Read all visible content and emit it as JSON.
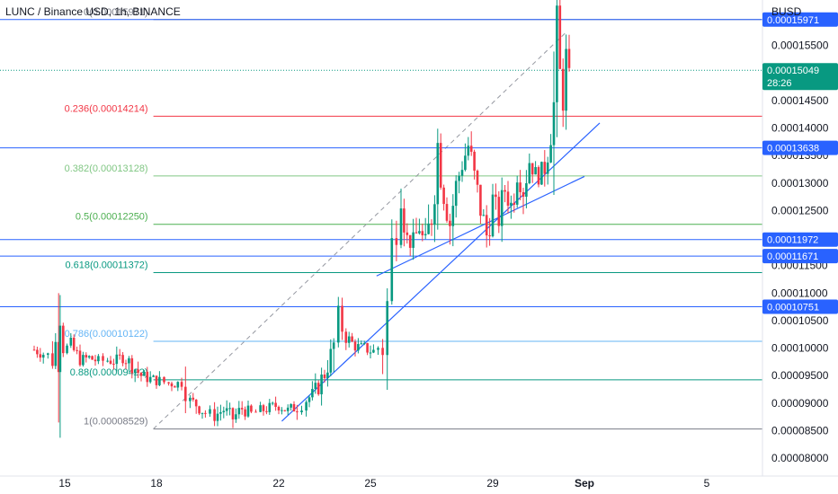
{
  "chart_data": {
    "type": "candlestick",
    "title": "LUNC / Binance USD, 1h, BINANCE",
    "currency": "BUSD",
    "y_ticks": [
      "0.00016000",
      "0.00015500",
      "0.00015000",
      "0.00014500",
      "0.00014000",
      "0.00013500",
      "0.00013000",
      "0.00012500",
      "0.00012000",
      "0.00011500",
      "0.00011000",
      "0.00010500",
      "0.00010000",
      "0.00009500",
      "0.00009000",
      "0.00008500",
      "0.00008000"
    ],
    "x_ticks": [
      {
        "label": "15",
        "day": 15
      },
      {
        "label": "18",
        "day": 18
      },
      {
        "label": "22",
        "day": 22
      },
      {
        "label": "25",
        "day": 25
      },
      {
        "label": "29",
        "day": 29
      },
      {
        "label": "Sep",
        "day": 32
      },
      {
        "label": "5",
        "day": 36
      }
    ],
    "ylim": [
      7.78e-05,
      0.0001627
    ],
    "fib_levels": [
      {
        "label": "0(0.00015971)",
        "value": 0.00015971,
        "color": "#787b86"
      },
      {
        "label": "0.236(0.00014214)",
        "value": 0.00014214,
        "color": "#f23645"
      },
      {
        "label": "0.382(0.00013128)",
        "value": 0.00013128,
        "color": "#81c784"
      },
      {
        "label": "0.5(0.00012250)",
        "value": 0.0001225,
        "color": "#4caf50"
      },
      {
        "label": "0.618(0.00011372)",
        "value": 0.00011372,
        "color": "#089981"
      },
      {
        "label": "0.786(0.00010122)",
        "value": 0.00010122,
        "color": "#64b5f6"
      },
      {
        "label": "0.88(0.00009422)",
        "value": 9.422e-05,
        "color": "#089981"
      },
      {
        "label": "1(0.00008529)",
        "value": 8.529e-05,
        "color": "#787b86"
      }
    ],
    "horizontal_lines": [
      {
        "label": "0.00015971",
        "value": 0.00015971
      },
      {
        "label": "0.00013638",
        "value": 0.00013638
      },
      {
        "label": "0.00011972",
        "value": 0.00011972
      },
      {
        "label": "0.00011671",
        "value": 0.00011671
      },
      {
        "label": "0.00010751",
        "value": 0.00010751
      }
    ],
    "current_price": {
      "label": "0.00015049",
      "value": 0.00015049,
      "countdown": "28:26",
      "color": "#089981"
    },
    "trend_lines": [
      {
        "style": "dashed",
        "from": {
          "day": 17.9,
          "value": 8.53e-05
        },
        "to": {
          "day": 31.4,
          "value": 0.0001574
        }
      },
      {
        "style": "solid",
        "from": {
          "day": 22.1,
          "value": 8.67e-05
        },
        "to": {
          "day": 32.5,
          "value": 0.0001409
        }
      },
      {
        "style": "solid",
        "from": {
          "day": 25.2,
          "value": 0.0001131
        },
        "to": {
          "day": 32.0,
          "value": 0.0001312
        }
      }
    ],
    "candles_close": [
      {
        "day": 14.0,
        "value": 9.97e-05
      },
      {
        "day": 14.3,
        "value": 9.9e-05
      },
      {
        "day": 14.6,
        "value": 9.83e-05
      },
      {
        "day": 14.8,
        "value": 0.0001032
      },
      {
        "day": 14.85,
        "value": 0.0001125
      },
      {
        "day": 14.95,
        "value": 9.98e-05
      },
      {
        "day": 15.2,
        "value": 0.0001003
      },
      {
        "day": 15.5,
        "value": 9.78e-05
      },
      {
        "day": 15.8,
        "value": 9.82e-05
      },
      {
        "day": 16.1,
        "value": 9.76e-05
      },
      {
        "day": 16.4,
        "value": 9.78e-05
      },
      {
        "day": 16.7,
        "value": 9.75e-05
      },
      {
        "day": 16.9,
        "value": 9.86e-05
      },
      {
        "day": 17.2,
        "value": 9.69e-05
      },
      {
        "day": 17.5,
        "value": 9.5e-05
      },
      {
        "day": 17.8,
        "value": 9.44e-05
      },
      {
        "day": 18.1,
        "value": 9.4e-05
      },
      {
        "day": 18.4,
        "value": 9.36e-05
      },
      {
        "day": 18.7,
        "value": 9.35e-05
      },
      {
        "day": 18.95,
        "value": 9.46e-05
      },
      {
        "day": 19.1,
        "value": 9.04e-05
      },
      {
        "day": 19.3,
        "value": 8.98e-05
      },
      {
        "day": 19.6,
        "value": 8.82e-05
      },
      {
        "day": 19.9,
        "value": 8.77e-05
      },
      {
        "day": 20.2,
        "value": 8.88e-05
      },
      {
        "day": 20.5,
        "value": 8.72e-05
      },
      {
        "day": 20.8,
        "value": 8.9e-05
      },
      {
        "day": 21.1,
        "value": 8.8e-05
      },
      {
        "day": 21.4,
        "value": 8.86e-05
      },
      {
        "day": 21.7,
        "value": 8.91e-05
      },
      {
        "day": 22.0,
        "value": 8.97e-05
      },
      {
        "day": 22.3,
        "value": 8.86e-05
      },
      {
        "day": 22.6,
        "value": 8.94e-05
      },
      {
        "day": 22.9,
        "value": 9.06e-05
      },
      {
        "day": 23.2,
        "value": 9.2e-05
      },
      {
        "day": 23.5,
        "value": 9.55e-05
      },
      {
        "day": 23.8,
        "value": 0.0001001
      },
      {
        "day": 23.95,
        "value": 0.0001055
      },
      {
        "day": 24.2,
        "value": 0.000102
      },
      {
        "day": 24.5,
        "value": 0.0001003
      },
      {
        "day": 24.8,
        "value": 0.0001
      },
      {
        "day": 25.1,
        "value": 9.93e-05
      },
      {
        "day": 25.4,
        "value": 0.000101
      },
      {
        "day": 25.55,
        "value": 0.0001072
      },
      {
        "day": 25.7,
        "value": 0.000118
      },
      {
        "day": 25.85,
        "value": 0.0001245
      },
      {
        "day": 26.0,
        "value": 0.0001305
      },
      {
        "day": 26.2,
        "value": 0.00012
      },
      {
        "day": 26.4,
        "value": 0.0001185
      },
      {
        "day": 26.6,
        "value": 0.0001225
      },
      {
        "day": 26.8,
        "value": 0.0001168
      },
      {
        "day": 27.0,
        "value": 0.0001253
      },
      {
        "day": 27.2,
        "value": 0.000137
      },
      {
        "day": 27.4,
        "value": 0.0001285
      },
      {
        "day": 27.6,
        "value": 0.0001228
      },
      {
        "day": 27.8,
        "value": 0.0001295
      },
      {
        "day": 28.0,
        "value": 0.0001335
      },
      {
        "day": 28.2,
        "value": 0.0001368
      },
      {
        "day": 28.4,
        "value": 0.0001308
      },
      {
        "day": 28.6,
        "value": 0.0001253
      },
      {
        "day": 28.8,
        "value": 0.0001205
      },
      {
        "day": 29.0,
        "value": 0.000127
      },
      {
        "day": 29.2,
        "value": 0.0001238
      },
      {
        "day": 29.4,
        "value": 0.0001288
      },
      {
        "day": 29.6,
        "value": 0.0001258
      },
      {
        "day": 29.8,
        "value": 0.0001318
      },
      {
        "day": 30.0,
        "value": 0.000129
      },
      {
        "day": 30.2,
        "value": 0.000134
      },
      {
        "day": 30.4,
        "value": 0.0001318
      },
      {
        "day": 30.6,
        "value": 0.0001305
      },
      {
        "day": 30.8,
        "value": 0.0001365
      },
      {
        "day": 31.0,
        "value": 0.0001432
      },
      {
        "day": 31.1,
        "value": 0.0001565
      },
      {
        "day": 31.2,
        "value": 0.0001497
      },
      {
        "day": 31.3,
        "value": 0.000147
      },
      {
        "day": 31.4,
        "value": 0.0001523
      },
      {
        "day": 31.5,
        "value": 0.0001485
      },
      {
        "day": 31.6,
        "value": 0.0001505
      }
    ]
  }
}
